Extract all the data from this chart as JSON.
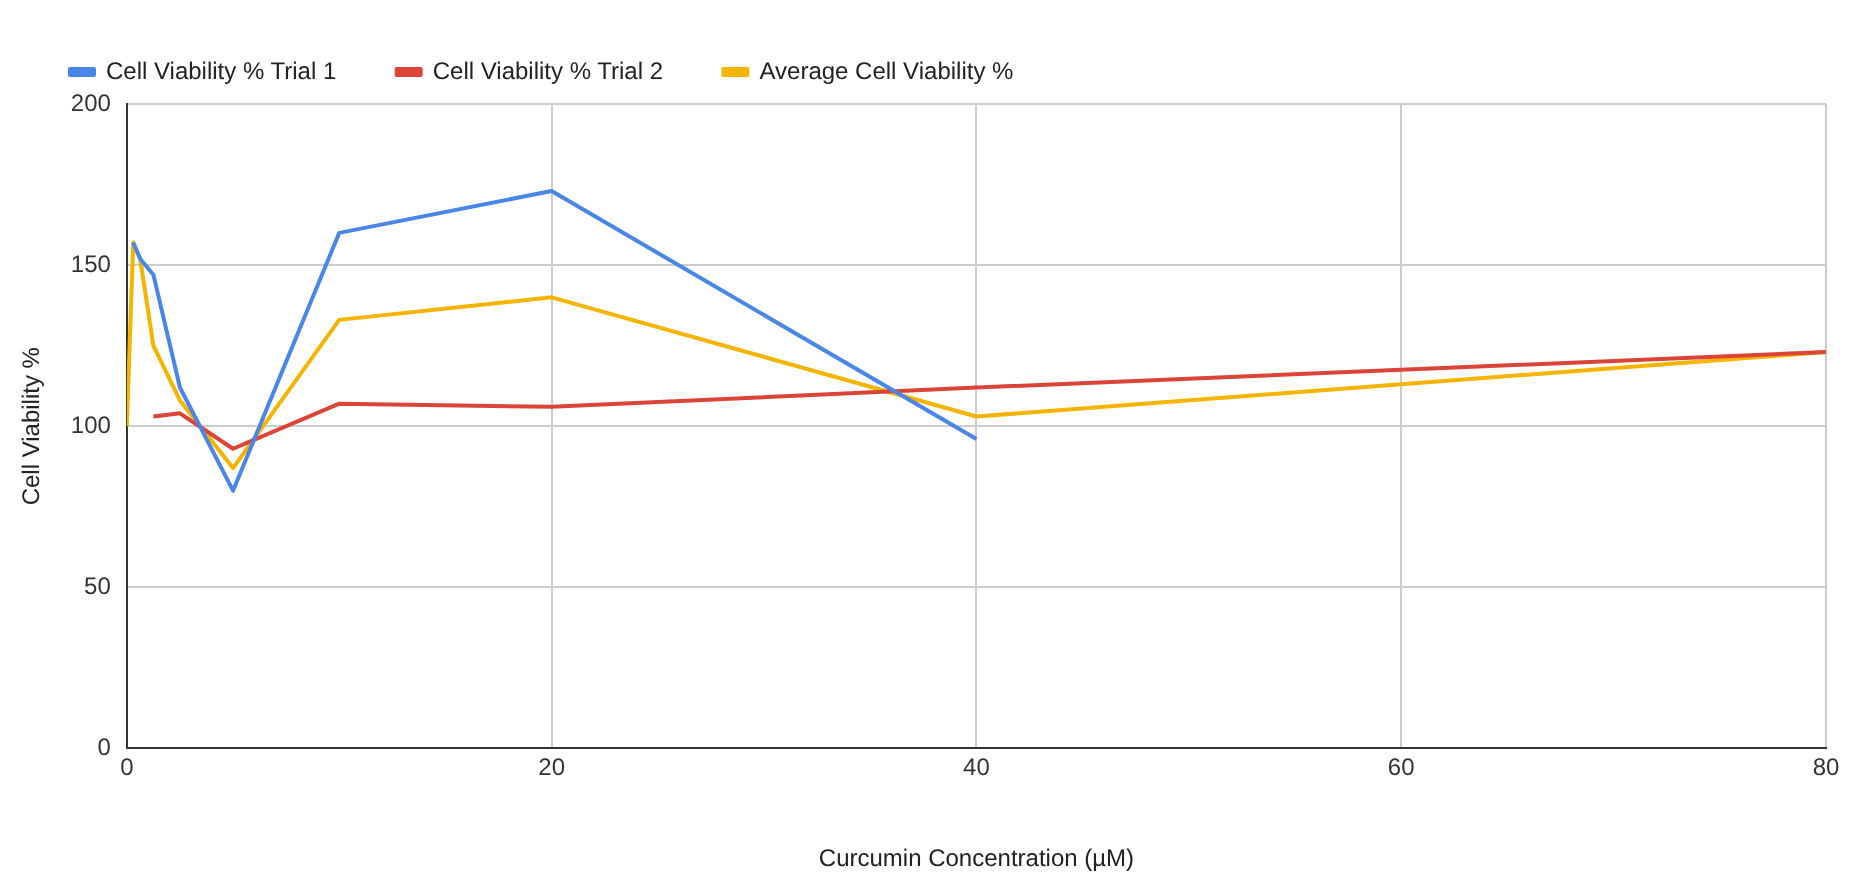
{
  "chart_data": {
    "type": "line",
    "xlabel": "Curcumin Concentration (µM)",
    "ylabel": "Cell Viability %",
    "xlim": [
      0,
      80
    ],
    "xticks": [
      0,
      20,
      40,
      60,
      80
    ],
    "ylim": [
      0,
      200
    ],
    "yticks": [
      0,
      50,
      100,
      150,
      200
    ],
    "grid": true,
    "legend": "top",
    "marker": "none",
    "line_style": "solid",
    "series": [
      {
        "name": "Cell Viability % Trial 1",
        "color": "#4a86e8",
        "x": [
          0.3,
          0.625,
          1.25,
          2.5,
          5,
          10,
          20,
          40
        ],
        "values": [
          157,
          152,
          147,
          112,
          80,
          160,
          173,
          96
        ]
      },
      {
        "name": "Cell Viability % Trial 2",
        "color": "#dc4437",
        "x": [
          1.25,
          2.5,
          5,
          10,
          20,
          40,
          80
        ],
        "values": [
          103,
          104,
          93,
          107,
          106,
          112,
          123
        ]
      },
      {
        "name": "Average Cell Viability %",
        "color": "#f4b400",
        "x": [
          0,
          0.3,
          0.625,
          1.25,
          2.5,
          5,
          10,
          20,
          40,
          80
        ],
        "values": [
          100,
          157,
          152,
          125,
          108,
          87,
          133,
          140,
          103,
          123
        ]
      }
    ]
  }
}
